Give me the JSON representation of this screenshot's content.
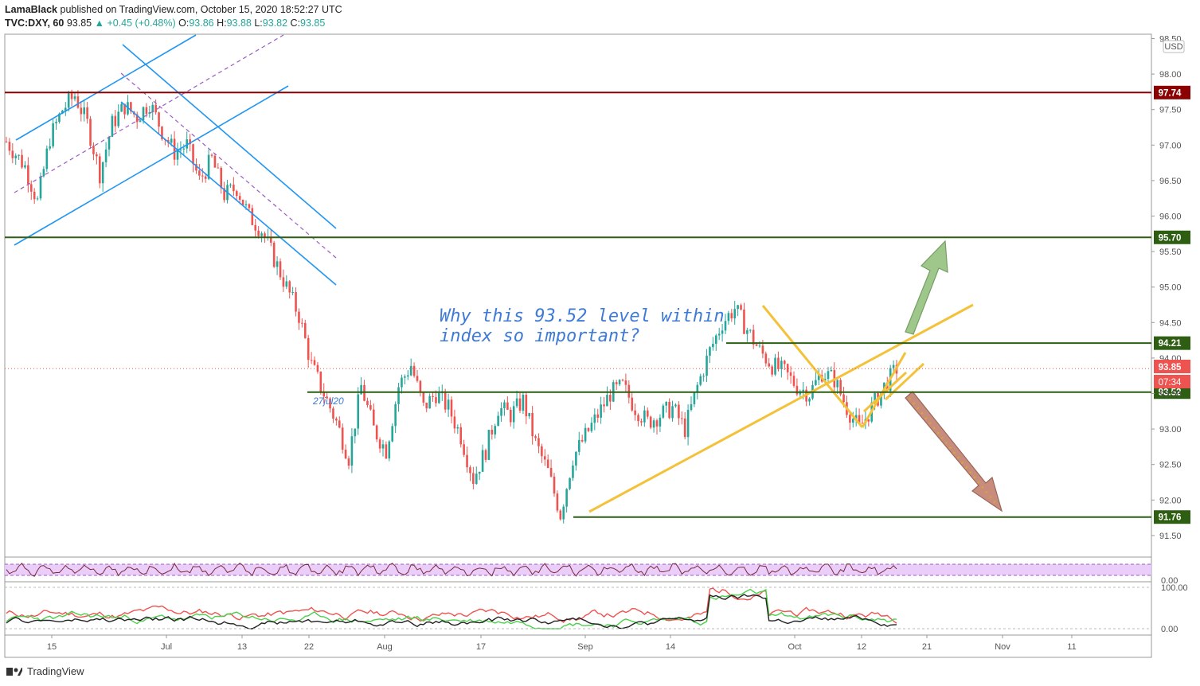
{
  "header": {
    "publisher": "LamaBlack",
    "published_text": "published on TradingView.com, October 15, 2020 18:52:27 UTC",
    "symbol": "TVC:DXY, 60",
    "last": "93.85",
    "change": "+0.45 (+0.48%)",
    "o_label": "O:",
    "o": "93.86",
    "h_label": "H:",
    "h": "93.88",
    "l_label": "L:",
    "l": "93.82",
    "c_label": "C:",
    "c": "93.85"
  },
  "footer": {
    "brand": "TradingView"
  },
  "colors": {
    "up": "#26a69a",
    "down": "#ef5350",
    "blue": "#2196f3",
    "yellow": "#f4c23a",
    "green_level": "#2e5e12",
    "red_level": "#8b0000",
    "rsi_fill": "#e8c8f8",
    "annotation": "#3f7bd6"
  },
  "chart_data": {
    "type": "candlestick",
    "currency": "USD",
    "y_ticks": [
      "98.50",
      "98.00",
      "97.50",
      "97.00",
      "96.50",
      "96.00",
      "95.50",
      "95.00",
      "94.50",
      "94.00",
      "93.50",
      "93.00",
      "92.50",
      "92.00",
      "91.50"
    ],
    "x_ticks": [
      "15",
      "Jul",
      "13",
      "22",
      "Aug",
      "17",
      "Sep",
      "14",
      "Oct",
      "12",
      "21",
      "Nov",
      "11"
    ],
    "ylim": [
      91.2,
      98.55
    ],
    "levels": [
      {
        "label": "97.74",
        "value": 97.74,
        "color": "#8b0000"
      },
      {
        "label": "95.70",
        "value": 95.7,
        "color": "#2e5e12"
      },
      {
        "label": "94.21",
        "value": 94.21,
        "color": "#2e5e12"
      },
      {
        "label": "93.52",
        "value": 93.52,
        "color": "#2e5e12"
      },
      {
        "label": "91.76",
        "value": 91.76,
        "color": "#2e5e12"
      }
    ],
    "current_price": {
      "label": "93.85",
      "value": 93.85,
      "countdown": "07:34"
    },
    "annotation_date": "27jul20",
    "annotation_text": [
      "Why this 93.52 level within",
      "index so important?"
    ],
    "trend_path": [
      [
        0,
        97.05
      ],
      [
        6,
        96.7
      ],
      [
        10,
        96.2
      ],
      [
        14,
        97.1
      ],
      [
        18,
        97.5
      ],
      [
        22,
        97.7
      ],
      [
        26,
        97.3
      ],
      [
        30,
        96.6
      ],
      [
        34,
        97.3
      ],
      [
        38,
        97.55
      ],
      [
        42,
        97.4
      ],
      [
        46,
        97.6
      ],
      [
        50,
        97.2
      ],
      [
        54,
        96.9
      ],
      [
        58,
        97.0
      ],
      [
        62,
        96.5
      ],
      [
        66,
        96.8
      ],
      [
        70,
        96.3
      ],
      [
        74,
        96.4
      ],
      [
        78,
        96.0
      ],
      [
        82,
        95.8
      ],
      [
        86,
        95.4
      ],
      [
        90,
        95.0
      ],
      [
        94,
        94.6
      ],
      [
        98,
        93.9
      ],
      [
        102,
        93.5
      ],
      [
        106,
        93.1
      ],
      [
        110,
        92.6
      ],
      [
        114,
        93.6
      ],
      [
        118,
        93.0
      ],
      [
        122,
        92.7
      ],
      [
        126,
        93.6
      ],
      [
        130,
        93.9
      ],
      [
        134,
        93.3
      ],
      [
        138,
        93.5
      ],
      [
        142,
        93.3
      ],
      [
        146,
        92.9
      ],
      [
        150,
        92.3
      ],
      [
        154,
        92.7
      ],
      [
        158,
        93.3
      ],
      [
        162,
        93.2
      ],
      [
        166,
        93.4
      ],
      [
        170,
        92.8
      ],
      [
        174,
        92.4
      ],
      [
        178,
        91.8
      ],
      [
        182,
        92.6
      ],
      [
        186,
        92.9
      ],
      [
        190,
        93.2
      ],
      [
        194,
        93.5
      ],
      [
        198,
        93.6
      ],
      [
        202,
        93.3
      ],
      [
        206,
        93.1
      ],
      [
        210,
        93.2
      ],
      [
        214,
        93.3
      ],
      [
        218,
        93.0
      ],
      [
        222,
        93.6
      ],
      [
        226,
        94.1
      ],
      [
        230,
        94.5
      ],
      [
        234,
        94.7
      ],
      [
        238,
        94.4
      ],
      [
        242,
        94.1
      ],
      [
        246,
        93.9
      ],
      [
        250,
        93.8
      ],
      [
        254,
        93.6
      ],
      [
        258,
        93.5
      ],
      [
        262,
        93.8
      ],
      [
        266,
        93.7
      ],
      [
        270,
        93.3
      ],
      [
        274,
        93.0
      ],
      [
        278,
        93.3
      ],
      [
        282,
        93.6
      ],
      [
        286,
        93.85
      ]
    ],
    "n_bars": 287,
    "rsi_level_label": "0.00",
    "stoch_labels": [
      "100.00",
      "0.00"
    ]
  }
}
